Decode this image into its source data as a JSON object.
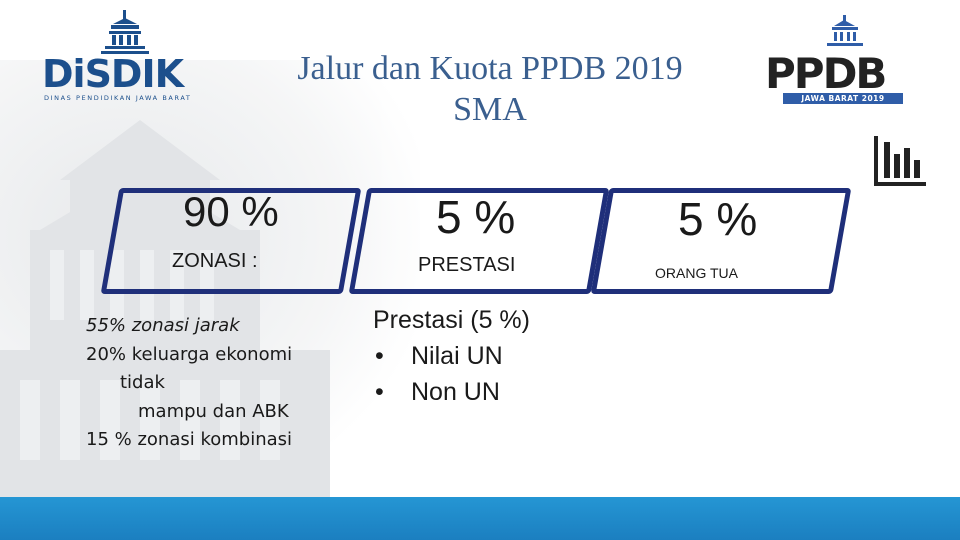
{
  "logos": {
    "disdik": {
      "word": "DiSDIK",
      "subtitle": "DINAS PENDIDIKAN JAWA BARAT",
      "color": "#1c4f8c"
    },
    "ppdb": {
      "word": "PPDB",
      "band": "JAWA BARAT 2019",
      "color": "#2f5da8"
    }
  },
  "header": {
    "title_line1": "Jalur dan Kuota PPDB 2019",
    "title_line2": "SMA",
    "color": "#3a5f8f"
  },
  "jalur": [
    {
      "percent": "90 %",
      "label": "ZONASI :",
      "details": [
        "55% zonasi jarak",
        "20% keluarga ekonomi",
        "tidak",
        "mampu dan ABK",
        "15 % zonasi kombinasi"
      ]
    },
    {
      "percent": "5 %",
      "label": "PRESTASI",
      "details_title": "Prestasi (5 %)",
      "bullets": [
        "Nilai UN",
        "Non  UN"
      ]
    },
    {
      "percent": "5 %",
      "label": "ORANG TUA"
    }
  ],
  "theme": {
    "box_border": "#1f2f7a",
    "bottom_bar": "#2596d4"
  },
  "icons": [
    "bar-chart-icon",
    "disdik-building-icon",
    "ppdb-building-icon"
  ]
}
